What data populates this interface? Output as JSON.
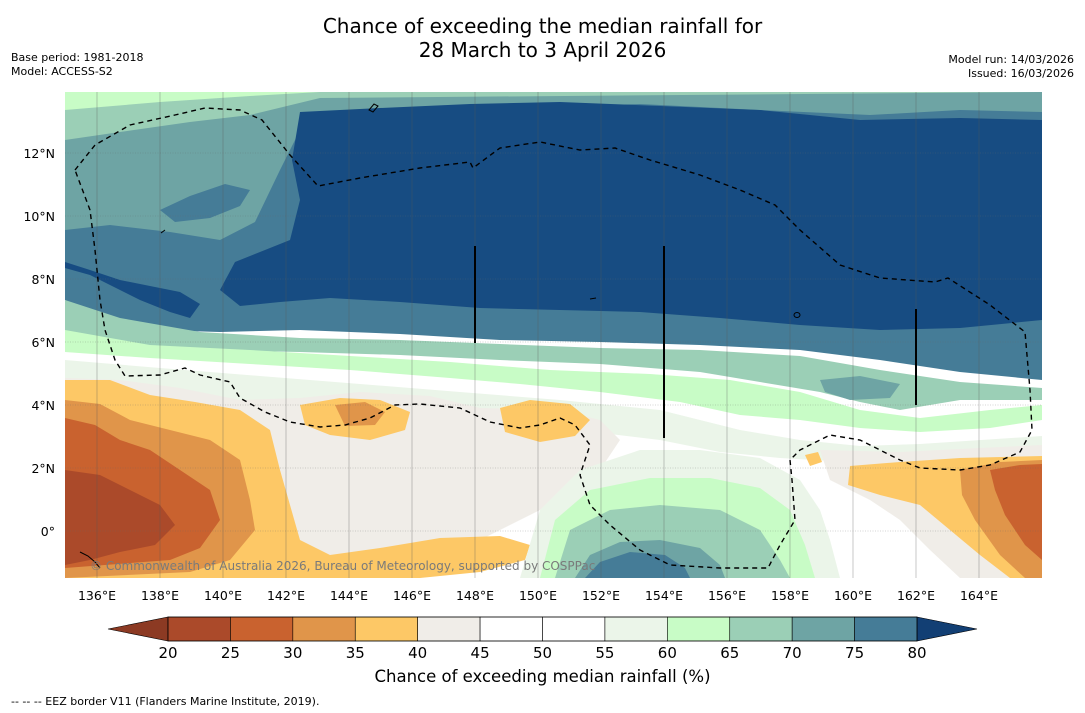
{
  "title": {
    "line1": "Chance of exceeding the median rainfall for",
    "line2": "28 March to 3 April 2026"
  },
  "meta_left": {
    "base_period": "Base period: 1981-2018",
    "model": "Model: ACCESS-S2"
  },
  "meta_right": {
    "model_run": "Model run: 14/03/2026",
    "issued": "Issued: 16/03/2026"
  },
  "map": {
    "lon_ticks": [
      "136°E",
      "138°E",
      "140°E",
      "142°E",
      "144°E",
      "146°E",
      "148°E",
      "150°E",
      "152°E",
      "154°E",
      "156°E",
      "158°E",
      "160°E",
      "162°E",
      "164°E"
    ],
    "lat_ticks": [
      "12°N",
      "10°N",
      "8°N",
      "6°N",
      "4°N",
      "2°N",
      "0°"
    ],
    "copyright": "© Commonwealth of Australia 2026, Bureau of Meteorology, supported by COSPPac"
  },
  "colorbar": {
    "labels": [
      "20",
      "25",
      "30",
      "35",
      "40",
      "45",
      "50",
      "55",
      "60",
      "65",
      "70",
      "75",
      "80"
    ],
    "colors": [
      "#ab4a2a",
      "#c9622f",
      "#e0954a",
      "#fdc866",
      "#f0ede8",
      "#ffffff",
      "#ffffff",
      "#ebf5e9",
      "#c8fcc6",
      "#9bcfb6",
      "#6ea4a4",
      "#457c97",
      "#174c82"
    ],
    "under_color": "#8c3a23",
    "over_color": "#123f74",
    "title": "Chance of exceeding median rainfall (%)"
  },
  "footnote": "--  --  -- EEZ border V11 (Flanders Marine Institute, 2019)."
}
